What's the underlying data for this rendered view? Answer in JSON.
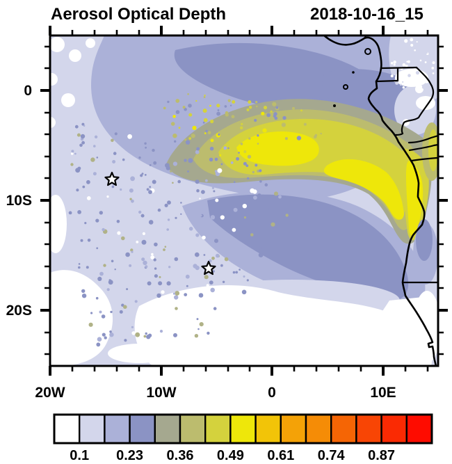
{
  "title": "Aerosol Optical Depth",
  "timestamp": "2018-10-16_15",
  "axes": {
    "x_tick_labels": [
      "20W",
      "10W",
      "0",
      "10E"
    ],
    "y_tick_labels": [
      "0",
      "10S",
      "20S"
    ]
  },
  "colorbar": {
    "tick_labels": [
      "0.1",
      "0.23",
      "0.36",
      "0.49",
      "0.61",
      "0.74",
      "0.87"
    ],
    "colors": [
      "#ffffff",
      "#d3d6eb",
      "#abb1d8",
      "#8b93c4",
      "#a5a88f",
      "#bcbc6e",
      "#d4d23d",
      "#eee70a",
      "#f2c408",
      "#f4a207",
      "#f58c06",
      "#f56505",
      "#f84505",
      "#fa2a03",
      "#fe0c00"
    ]
  },
  "chart_data": {
    "type": "heatmap",
    "title": "Aerosol Optical Depth",
    "time_label": "2018-10-16_15",
    "x_axis": {
      "tick_labels": [
        "20W",
        "10W",
        "0",
        "10E"
      ],
      "range_deg_lon": [
        -20,
        15
      ],
      "minor_tick_interval_deg": 2
    },
    "y_axis": {
      "tick_labels": [
        "0",
        "10S",
        "20S"
      ],
      "range_deg_lat": [
        -25,
        5
      ],
      "minor_tick_interval_deg": 2
    },
    "colorbar_tick_values": [
      0.1,
      0.23,
      0.36,
      0.49,
      0.61,
      0.74,
      0.87
    ],
    "colorbar_colors": [
      "#ffffff",
      "#d3d6eb",
      "#abb1d8",
      "#8b93c4",
      "#a5a88f",
      "#bcbc6e",
      "#d4d23d",
      "#eee70a",
      "#f2c408",
      "#f4a207",
      "#f58c06",
      "#f56505",
      "#f84505",
      "#fa2a03",
      "#fe0c00"
    ],
    "markers": [
      {
        "symbol": "star",
        "lon_deg": -14.4,
        "lat_deg": -8.1
      },
      {
        "symbol": "star",
        "lon_deg": -5.7,
        "lat_deg": -16.2
      }
    ],
    "field_features": [
      {
        "name": "smoke-plume-core",
        "aod_range": "0.45-0.55",
        "extent": "2S-9S from ~5W eastward to African coast; brightest 2E-10E and along Angola coast down to ~12S"
      },
      {
        "name": "plume-halo",
        "aod_range": "0.30-0.45",
        "extent": "broad olive/gray band 0-10S from ~12W to the coast, speckled fringe to the west"
      },
      {
        "name": "elevated-band",
        "aod_range": "0.17-0.30",
        "extent": "blue-purple band across upper map (3N-5S) and arc sweeping southeast of plume toward the coast near 13-16S"
      },
      {
        "name": "background",
        "aod_range": "0.10-0.16",
        "extent": "most remaining ocean area"
      },
      {
        "name": "clean-minima",
        "aod_range": "<0.04",
        "extent": "southwest corner, large south-central region 17S-25S, and coastal strip south of 17S"
      }
    ]
  }
}
